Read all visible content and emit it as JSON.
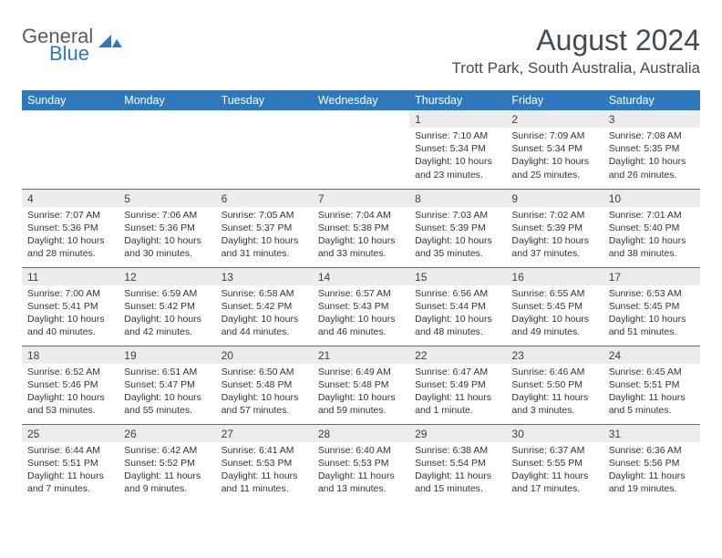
{
  "brand": {
    "name1": "General",
    "name2": "Blue"
  },
  "title": "August 2024",
  "location": "Trott Park, South Australia, Australia",
  "colors": {
    "accent": "#2e78bd",
    "header_text": "#ffffff",
    "daynum_bg": "#ececec",
    "text": "#333333",
    "title_text": "#444b53"
  },
  "day_headers": [
    "Sunday",
    "Monday",
    "Tuesday",
    "Wednesday",
    "Thursday",
    "Friday",
    "Saturday"
  ],
  "weeks": [
    [
      {
        "n": "",
        "sun": "",
        "set": "",
        "day": ""
      },
      {
        "n": "",
        "sun": "",
        "set": "",
        "day": ""
      },
      {
        "n": "",
        "sun": "",
        "set": "",
        "day": ""
      },
      {
        "n": "",
        "sun": "",
        "set": "",
        "day": ""
      },
      {
        "n": "1",
        "sun": "Sunrise: 7:10 AM",
        "set": "Sunset: 5:34 PM",
        "day": "Daylight: 10 hours and 23 minutes."
      },
      {
        "n": "2",
        "sun": "Sunrise: 7:09 AM",
        "set": "Sunset: 5:34 PM",
        "day": "Daylight: 10 hours and 25 minutes."
      },
      {
        "n": "3",
        "sun": "Sunrise: 7:08 AM",
        "set": "Sunset: 5:35 PM",
        "day": "Daylight: 10 hours and 26 minutes."
      }
    ],
    [
      {
        "n": "4",
        "sun": "Sunrise: 7:07 AM",
        "set": "Sunset: 5:36 PM",
        "day": "Daylight: 10 hours and 28 minutes."
      },
      {
        "n": "5",
        "sun": "Sunrise: 7:06 AM",
        "set": "Sunset: 5:36 PM",
        "day": "Daylight: 10 hours and 30 minutes."
      },
      {
        "n": "6",
        "sun": "Sunrise: 7:05 AM",
        "set": "Sunset: 5:37 PM",
        "day": "Daylight: 10 hours and 31 minutes."
      },
      {
        "n": "7",
        "sun": "Sunrise: 7:04 AM",
        "set": "Sunset: 5:38 PM",
        "day": "Daylight: 10 hours and 33 minutes."
      },
      {
        "n": "8",
        "sun": "Sunrise: 7:03 AM",
        "set": "Sunset: 5:39 PM",
        "day": "Daylight: 10 hours and 35 minutes."
      },
      {
        "n": "9",
        "sun": "Sunrise: 7:02 AM",
        "set": "Sunset: 5:39 PM",
        "day": "Daylight: 10 hours and 37 minutes."
      },
      {
        "n": "10",
        "sun": "Sunrise: 7:01 AM",
        "set": "Sunset: 5:40 PM",
        "day": "Daylight: 10 hours and 38 minutes."
      }
    ],
    [
      {
        "n": "11",
        "sun": "Sunrise: 7:00 AM",
        "set": "Sunset: 5:41 PM",
        "day": "Daylight: 10 hours and 40 minutes."
      },
      {
        "n": "12",
        "sun": "Sunrise: 6:59 AM",
        "set": "Sunset: 5:42 PM",
        "day": "Daylight: 10 hours and 42 minutes."
      },
      {
        "n": "13",
        "sun": "Sunrise: 6:58 AM",
        "set": "Sunset: 5:42 PM",
        "day": "Daylight: 10 hours and 44 minutes."
      },
      {
        "n": "14",
        "sun": "Sunrise: 6:57 AM",
        "set": "Sunset: 5:43 PM",
        "day": "Daylight: 10 hours and 46 minutes."
      },
      {
        "n": "15",
        "sun": "Sunrise: 6:56 AM",
        "set": "Sunset: 5:44 PM",
        "day": "Daylight: 10 hours and 48 minutes."
      },
      {
        "n": "16",
        "sun": "Sunrise: 6:55 AM",
        "set": "Sunset: 5:45 PM",
        "day": "Daylight: 10 hours and 49 minutes."
      },
      {
        "n": "17",
        "sun": "Sunrise: 6:53 AM",
        "set": "Sunset: 5:45 PM",
        "day": "Daylight: 10 hours and 51 minutes."
      }
    ],
    [
      {
        "n": "18",
        "sun": "Sunrise: 6:52 AM",
        "set": "Sunset: 5:46 PM",
        "day": "Daylight: 10 hours and 53 minutes."
      },
      {
        "n": "19",
        "sun": "Sunrise: 6:51 AM",
        "set": "Sunset: 5:47 PM",
        "day": "Daylight: 10 hours and 55 minutes."
      },
      {
        "n": "20",
        "sun": "Sunrise: 6:50 AM",
        "set": "Sunset: 5:48 PM",
        "day": "Daylight: 10 hours and 57 minutes."
      },
      {
        "n": "21",
        "sun": "Sunrise: 6:49 AM",
        "set": "Sunset: 5:48 PM",
        "day": "Daylight: 10 hours and 59 minutes."
      },
      {
        "n": "22",
        "sun": "Sunrise: 6:47 AM",
        "set": "Sunset: 5:49 PM",
        "day": "Daylight: 11 hours and 1 minute."
      },
      {
        "n": "23",
        "sun": "Sunrise: 6:46 AM",
        "set": "Sunset: 5:50 PM",
        "day": "Daylight: 11 hours and 3 minutes."
      },
      {
        "n": "24",
        "sun": "Sunrise: 6:45 AM",
        "set": "Sunset: 5:51 PM",
        "day": "Daylight: 11 hours and 5 minutes."
      }
    ],
    [
      {
        "n": "25",
        "sun": "Sunrise: 6:44 AM",
        "set": "Sunset: 5:51 PM",
        "day": "Daylight: 11 hours and 7 minutes."
      },
      {
        "n": "26",
        "sun": "Sunrise: 6:42 AM",
        "set": "Sunset: 5:52 PM",
        "day": "Daylight: 11 hours and 9 minutes."
      },
      {
        "n": "27",
        "sun": "Sunrise: 6:41 AM",
        "set": "Sunset: 5:53 PM",
        "day": "Daylight: 11 hours and 11 minutes."
      },
      {
        "n": "28",
        "sun": "Sunrise: 6:40 AM",
        "set": "Sunset: 5:53 PM",
        "day": "Daylight: 11 hours and 13 minutes."
      },
      {
        "n": "29",
        "sun": "Sunrise: 6:38 AM",
        "set": "Sunset: 5:54 PM",
        "day": "Daylight: 11 hours and 15 minutes."
      },
      {
        "n": "30",
        "sun": "Sunrise: 6:37 AM",
        "set": "Sunset: 5:55 PM",
        "day": "Daylight: 11 hours and 17 minutes."
      },
      {
        "n": "31",
        "sun": "Sunrise: 6:36 AM",
        "set": "Sunset: 5:56 PM",
        "day": "Daylight: 11 hours and 19 minutes."
      }
    ]
  ]
}
